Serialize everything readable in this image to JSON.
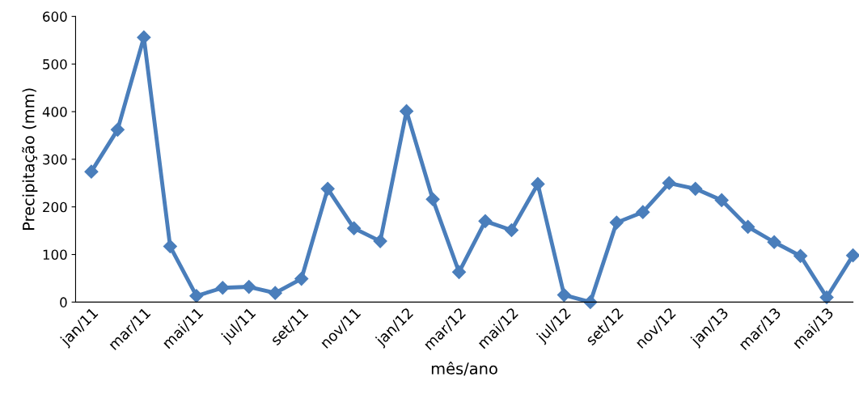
{
  "chart_data": {
    "type": "line",
    "xlabel": "mês/ano",
    "ylabel": "Precipitação (mm)",
    "categories": [
      "jan/11",
      null,
      "mar/11",
      null,
      "mai/11",
      null,
      "jul/11",
      null,
      "set/11",
      null,
      "nov/11",
      null,
      "jan/12",
      null,
      "mar/12",
      null,
      "mai/12",
      null,
      "jul/12",
      null,
      "set/12",
      null,
      "nov/12",
      null,
      "jan/13",
      null,
      "mar/13",
      null,
      "mai/13",
      null
    ],
    "series": [
      {
        "color": "#4a7ebb",
        "values": [
          274,
          362,
          556,
          117,
          13,
          30,
          32,
          19,
          49,
          238,
          155,
          128,
          401,
          216,
          63,
          170,
          151,
          248,
          15,
          0,
          167,
          189,
          250,
          238,
          214,
          158,
          126,
          97,
          10,
          98
        ]
      }
    ],
    "ylim": [
      0,
      600
    ],
    "yticks": [
      0,
      100,
      200,
      300,
      400,
      500,
      600
    ],
    "grid": false,
    "legend": false,
    "marker": "diamond",
    "line_style": "solid"
  }
}
